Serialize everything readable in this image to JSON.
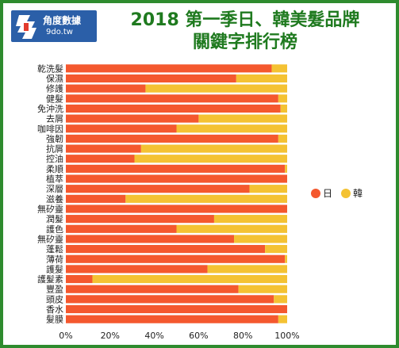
{
  "header": {
    "logo_name": "角度數據",
    "logo_url": "9do.tw",
    "title_line1": "2018 第一季日、韓美髮品牌",
    "title_line2": "關鍵字排行榜"
  },
  "colors": {
    "series_japan": "#f4582e",
    "series_korea": "#f4c233",
    "frame_border": "#2e8b2e",
    "title": "#1f7a1f",
    "logo_bg": "#2b5fa8"
  },
  "chart_data": {
    "type": "bar",
    "orientation": "horizontal",
    "stacked": "percent",
    "categories": [
      "乾洗髮",
      "保濕",
      "修護",
      "健髮",
      "免沖洗",
      "去屑",
      "咖啡因",
      "強韌",
      "抗屑",
      "控油",
      "柔順",
      "植萃",
      "深層",
      "滋養",
      "無矽靈",
      "潤髮",
      "護色",
      "無矽靈",
      "蓬鬆",
      "薄荷",
      "護髮",
      "護髮素",
      "豐盈",
      "頭皮",
      "香水",
      "髮膜"
    ],
    "series": [
      {
        "name": "日",
        "values": [
          93,
          77,
          36,
          96,
          97,
          60,
          50,
          96,
          34,
          31,
          99,
          100,
          83,
          27,
          100,
          67,
          50,
          76,
          90,
          99,
          64,
          12,
          78,
          94,
          100,
          96
        ]
      },
      {
        "name": "韓",
        "values": [
          7,
          23,
          64,
          4,
          3,
          40,
          50,
          4,
          66,
          69,
          1,
          0,
          17,
          73,
          0,
          33,
          50,
          24,
          10,
          1,
          36,
          88,
          22,
          6,
          0,
          4
        ]
      }
    ],
    "xlim": [
      0,
      100
    ],
    "xticks": [
      "0%",
      "20%",
      "40%",
      "60%",
      "80%",
      "100%"
    ],
    "grid": false,
    "legend": "right"
  }
}
